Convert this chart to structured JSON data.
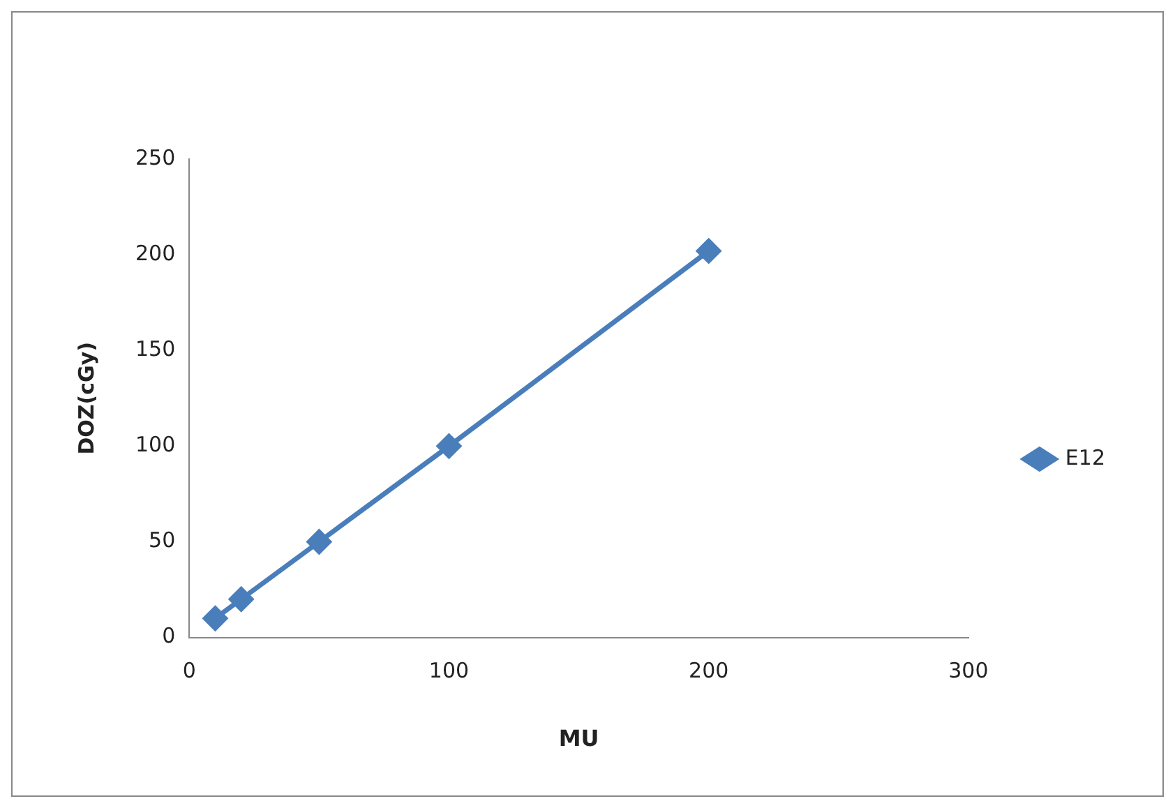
{
  "chart_data": {
    "type": "line",
    "xlabel": "MU",
    "ylabel": "DOZ(cGy)",
    "x": [
      10,
      20,
      50,
      100,
      200
    ],
    "series": [
      {
        "name": "E12",
        "color": "#4a7ebb",
        "values": [
          10,
          20,
          50,
          100,
          202
        ]
      }
    ],
    "xlim": [
      0,
      300
    ],
    "xticks": [
      0,
      100,
      200,
      300
    ],
    "ylim": [
      0,
      250
    ],
    "yticks": [
      0,
      50,
      100,
      150,
      200,
      250
    ],
    "grid": false,
    "legend": "right",
    "marker": "diamond",
    "line_style": "solid"
  }
}
